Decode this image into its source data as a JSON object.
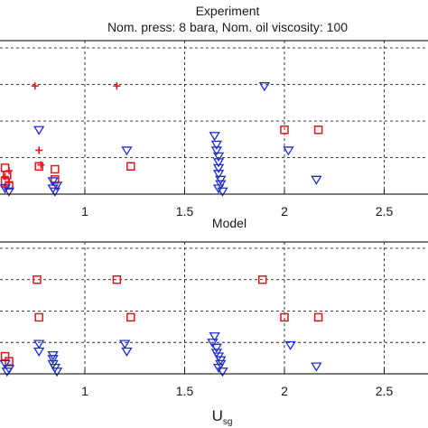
{
  "figure": {
    "title_line1": "Experiment",
    "title_line2": "Nom. press: 8 bara, Nom. oil viscosity: 100"
  },
  "colors": {
    "red": "#e8141b",
    "blue": "#1c2bd6",
    "grid": "#222222"
  },
  "chart_data": [
    {
      "type": "scatter",
      "title": "Experiment",
      "subtitle": "Nom. press: 8 bara, Nom. oil viscosity: 100",
      "xlabel": "Model",
      "ylabel": "",
      "xlim": [
        0.58,
        2.7
      ],
      "ylim": [
        0,
        1.05
      ],
      "grid": true,
      "legend": "none",
      "xticks": [
        {
          "value": 1,
          "label": "1"
        },
        {
          "value": 1.5,
          "label": "1.5"
        },
        {
          "value": 2,
          "label": "2"
        },
        {
          "value": 2.5,
          "label": "2.5"
        }
      ],
      "yticks": [
        0,
        0.25,
        0.5,
        0.75,
        1
      ],
      "series": [
        {
          "marker": "plus",
          "color": "#e8141b",
          "points": [
            [
              0.6,
              0.12
            ],
            [
              0.62,
              0.08
            ],
            [
              0.6,
              0.05
            ],
            [
              0.62,
              0.16
            ],
            [
              0.75,
              0.74
            ],
            [
              0.77,
              0.3
            ],
            [
              1.16,
              0.74
            ],
            [
              0.78,
              0.2
            ]
          ]
        },
        {
          "marker": "square",
          "color": "#e8141b",
          "points": [
            [
              0.6,
              0.18
            ],
            [
              0.61,
              0.13
            ],
            [
              0.6,
              0.09
            ],
            [
              0.62,
              0.06
            ],
            [
              0.77,
              0.19
            ],
            [
              0.85,
              0.17
            ],
            [
              0.85,
              0.1
            ],
            [
              1.23,
              0.19
            ],
            [
              2.0,
              0.44
            ],
            [
              2.17,
              0.44
            ]
          ]
        },
        {
          "marker": "triangle-down",
          "color": "#1c2bd6",
          "points": [
            [
              0.6,
              0.04
            ],
            [
              0.62,
              0.02
            ],
            [
              0.77,
              0.44
            ],
            [
              0.84,
              0.04
            ],
            [
              0.85,
              0.02
            ],
            [
              0.84,
              0.09
            ],
            [
              0.86,
              0.06
            ],
            [
              1.21,
              0.3
            ],
            [
              1.9,
              0.74
            ],
            [
              2.02,
              0.3
            ],
            [
              2.16,
              0.1
            ],
            [
              1.65,
              0.4
            ],
            [
              1.66,
              0.34
            ],
            [
              1.66,
              0.3
            ],
            [
              1.67,
              0.26
            ],
            [
              1.67,
              0.22
            ],
            [
              1.67,
              0.18
            ],
            [
              1.67,
              0.14
            ],
            [
              1.68,
              0.1
            ],
            [
              1.68,
              0.07
            ],
            [
              1.67,
              0.04
            ],
            [
              1.69,
              0.02
            ]
          ]
        }
      ]
    },
    {
      "type": "scatter",
      "title": "Model",
      "xlabel": "U",
      "xlabel_sub": "sg",
      "ylabel": "",
      "xlim": [
        0.58,
        2.7
      ],
      "ylim": [
        0,
        1.05
      ],
      "grid": true,
      "legend": "none",
      "xticks": [
        {
          "value": 1,
          "label": "1"
        },
        {
          "value": 1.5,
          "label": "1.5"
        },
        {
          "value": 2,
          "label": "2"
        },
        {
          "value": 2.5,
          "label": "2.5"
        }
      ],
      "yticks": [
        0,
        0.25,
        0.5,
        0.75,
        1
      ],
      "series": [
        {
          "marker": "square",
          "color": "#e8141b",
          "points": [
            [
              0.76,
              0.75
            ],
            [
              0.77,
              0.45
            ],
            [
              1.16,
              0.75
            ],
            [
              1.23,
              0.45
            ],
            [
              1.89,
              0.75
            ],
            [
              2.0,
              0.45
            ],
            [
              2.17,
              0.45
            ],
            [
              0.6,
              0.14
            ],
            [
              0.62,
              0.1
            ]
          ]
        },
        {
          "marker": "triangle-down",
          "color": "#1c2bd6",
          "points": [
            [
              0.6,
              0.08
            ],
            [
              0.62,
              0.04
            ],
            [
              0.61,
              0.02
            ],
            [
              0.77,
              0.24
            ],
            [
              0.77,
              0.18
            ],
            [
              0.84,
              0.12
            ],
            [
              0.84,
              0.08
            ],
            [
              0.85,
              0.05
            ],
            [
              0.86,
              0.02
            ],
            [
              0.84,
              0.15
            ],
            [
              1.2,
              0.24
            ],
            [
              1.21,
              0.18
            ],
            [
              2.03,
              0.23
            ],
            [
              2.16,
              0.06
            ],
            [
              1.64,
              0.25
            ],
            [
              1.66,
              0.21
            ],
            [
              1.66,
              0.17
            ],
            [
              1.67,
              0.14
            ],
            [
              1.68,
              0.11
            ],
            [
              1.68,
              0.08
            ],
            [
              1.67,
              0.05
            ],
            [
              1.69,
              0.02
            ],
            [
              1.65,
              0.3
            ]
          ]
        }
      ]
    }
  ]
}
